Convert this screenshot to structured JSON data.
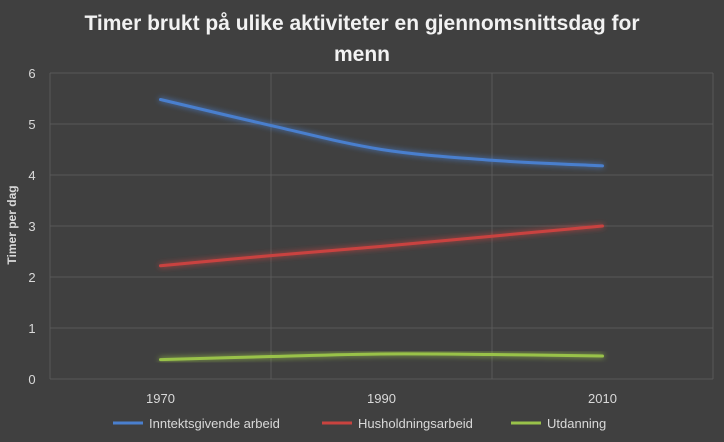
{
  "chart_data": {
    "type": "line",
    "title_lines": [
      "Timer brukt på ulike aktiviteter en gjennomsnittsdag for",
      "menn"
    ],
    "ylabel": "Timer per dag",
    "xlabel": "",
    "x": [
      1970,
      1980,
      1990,
      2000,
      2010
    ],
    "x_tick_labels": [
      "1970",
      "1990",
      "2010"
    ],
    "x_tick_values": [
      1970,
      1990,
      2010
    ],
    "ylim": [
      0,
      6
    ],
    "y_ticks": [
      "0",
      "1",
      "2",
      "3",
      "4",
      "5",
      "6"
    ],
    "grid": true,
    "legend_position": "bottom",
    "series": [
      {
        "name": "Inntektsgivende arbeid",
        "color": "#4a7fce",
        "values": [
          5.48,
          4.97,
          4.5,
          4.29,
          4.18
        ]
      },
      {
        "name": "Husholdningsarbeid",
        "color": "#c9433f",
        "values": [
          2.22,
          2.42,
          2.6,
          2.8,
          3.0
        ]
      },
      {
        "name": "Utdanning",
        "color": "#99c24a",
        "values": [
          0.38,
          0.44,
          0.49,
          0.48,
          0.45
        ]
      }
    ]
  }
}
